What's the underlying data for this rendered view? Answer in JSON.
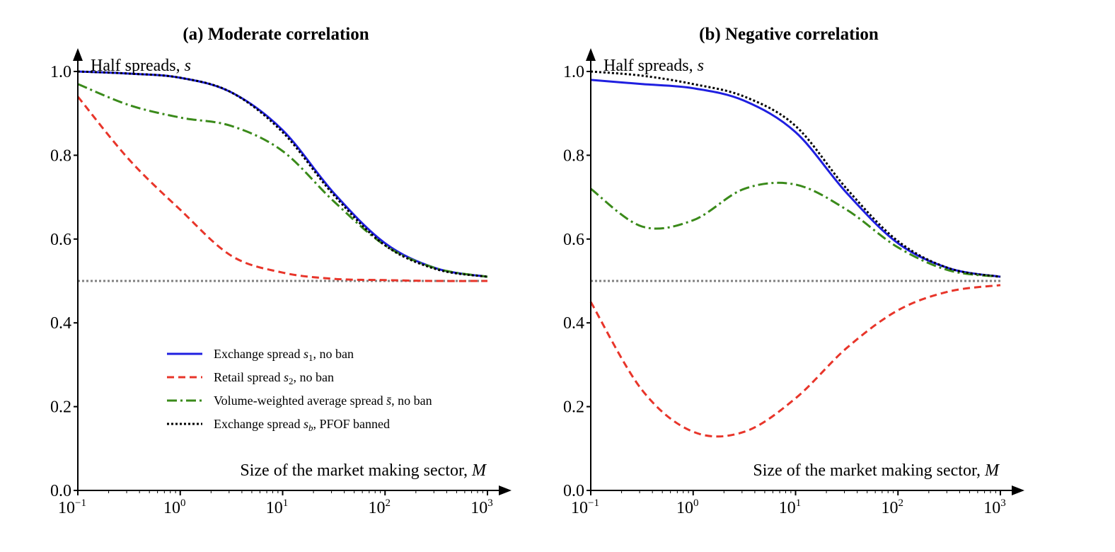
{
  "chart_data": [
    {
      "type": "line",
      "title": "(a) Moderate correlation",
      "xlabel": "Size of the market making sector, M",
      "ylabel": "Half spreads, s",
      "xscale": "log",
      "xlim": [
        0.1,
        1000
      ],
      "ylim": [
        0.0,
        1.0
      ],
      "xticks": [
        {
          "base": "10",
          "exp": "−1"
        },
        {
          "base": "10",
          "exp": "0"
        },
        {
          "base": "10",
          "exp": "1"
        },
        {
          "base": "10",
          "exp": "2"
        },
        {
          "base": "10",
          "exp": "3"
        }
      ],
      "yticks": [
        "0.0",
        "0.2",
        "0.4",
        "0.6",
        "0.8",
        "1.0"
      ],
      "grid": false,
      "reference_line": {
        "y": 0.5,
        "style": "dotted",
        "color": "#808080"
      },
      "x": [
        0.1,
        0.316,
        1,
        3.16,
        10,
        31.6,
        100,
        316,
        1000
      ],
      "series": [
        {
          "name": "Exchange spread s1, no ban",
          "color": "#1f1fe0",
          "style": "solid",
          "values": [
            1.0,
            0.995,
            0.985,
            0.95,
            0.86,
            0.71,
            0.59,
            0.53,
            0.51
          ]
        },
        {
          "name": "Retail spread s2, no ban",
          "color": "#e8352a",
          "style": "dashed",
          "values": [
            0.94,
            0.79,
            0.67,
            0.56,
            0.52,
            0.505,
            0.502,
            0.5,
            0.5
          ]
        },
        {
          "name": "Volume-weighted average spread s̄, no ban",
          "color": "#3a8a1a",
          "style": "dashdot",
          "values": [
            0.97,
            0.92,
            0.89,
            0.87,
            0.81,
            0.69,
            0.585,
            0.53,
            0.51
          ]
        },
        {
          "name": "Exchange spread sb, PFOF banned",
          "color": "#000000",
          "style": "dotted",
          "values": [
            1.0,
            0.995,
            0.985,
            0.95,
            0.855,
            0.705,
            0.585,
            0.528,
            0.51
          ]
        }
      ],
      "legend": {
        "placement": "lower-center",
        "entries": [
          {
            "pre": "Exchange spread ",
            "sym": "s",
            "sub": "1",
            "post": ", no ban"
          },
          {
            "pre": "Retail spread ",
            "sym": "s",
            "sub": "2",
            "post": ", no ban"
          },
          {
            "pre": "Volume-weighted average spread ",
            "sym": "s̄",
            "sub": "",
            "post": ", no ban"
          },
          {
            "pre": "Exchange spread ",
            "sym": "s",
            "sub": "b",
            "post": ", PFOF banned"
          }
        ]
      }
    },
    {
      "type": "line",
      "title": "(b) Negative correlation",
      "xlabel": "Size of the market making sector, M",
      "ylabel": "Half spreads, s",
      "xscale": "log",
      "xlim": [
        0.1,
        1000
      ],
      "ylim": [
        0.0,
        1.0
      ],
      "xticks": [
        {
          "base": "10",
          "exp": "−1"
        },
        {
          "base": "10",
          "exp": "0"
        },
        {
          "base": "10",
          "exp": "1"
        },
        {
          "base": "10",
          "exp": "2"
        },
        {
          "base": "10",
          "exp": "3"
        }
      ],
      "yticks": [
        "0.0",
        "0.2",
        "0.4",
        "0.6",
        "0.8",
        "1.0"
      ],
      "grid": false,
      "reference_line": {
        "y": 0.5,
        "style": "dotted",
        "color": "#808080"
      },
      "x": [
        0.1,
        0.316,
        1,
        3.16,
        10,
        31.6,
        100,
        316,
        1000
      ],
      "series": [
        {
          "name": "Exchange spread s1, no ban",
          "color": "#1f1fe0",
          "style": "solid",
          "values": [
            0.98,
            0.97,
            0.96,
            0.93,
            0.855,
            0.71,
            0.59,
            0.53,
            0.51
          ]
        },
        {
          "name": "Retail spread s2, no ban",
          "color": "#e8352a",
          "style": "dashed",
          "values": [
            0.45,
            0.24,
            0.14,
            0.14,
            0.22,
            0.34,
            0.43,
            0.475,
            0.49
          ]
        },
        {
          "name": "Volume-weighted average spread s̄, no ban",
          "color": "#3a8a1a",
          "style": "dashdot",
          "values": [
            0.72,
            0.63,
            0.645,
            0.72,
            0.73,
            0.67,
            0.58,
            0.525,
            0.51
          ]
        },
        {
          "name": "Exchange spread sb, PFOF banned",
          "color": "#000000",
          "style": "dotted",
          "values": [
            1.0,
            0.99,
            0.97,
            0.94,
            0.87,
            0.72,
            0.595,
            0.53,
            0.51
          ]
        }
      ]
    }
  ]
}
